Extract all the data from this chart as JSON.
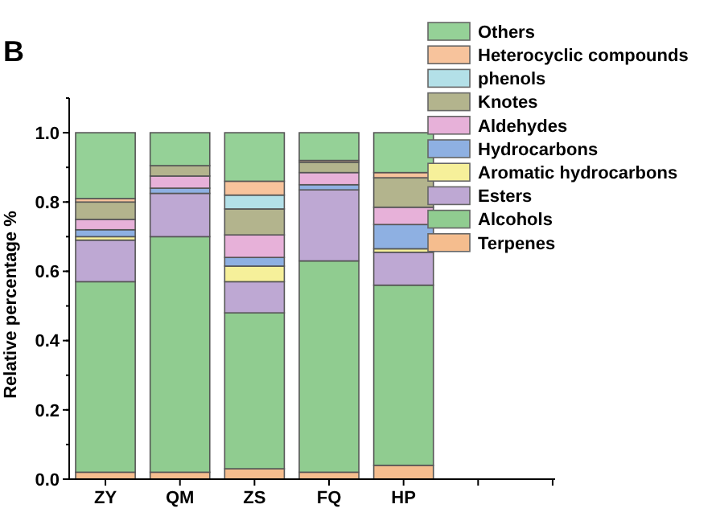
{
  "chart_data": {
    "type": "bar",
    "stacked": true,
    "ylabel": "Relative percentage %",
    "annotations": [
      "B"
    ],
    "categories": [
      "ZY",
      "QM",
      "ZS",
      "FQ",
      "HP",
      null,
      null
    ],
    "series": [
      {
        "name": "Terpenes",
        "color": "#f5bd8e",
        "values": [
          0.02,
          0.02,
          0.03,
          0.02,
          0.04,
          null,
          null
        ]
      },
      {
        "name": "Alcohols",
        "color": "#90cc90",
        "values": [
          0.55,
          0.68,
          0.45,
          0.61,
          0.52,
          null,
          null
        ]
      },
      {
        "name": "Esters",
        "color": "#bea8d3",
        "values": [
          0.12,
          0.125,
          0.09,
          0.205,
          0.095,
          null,
          null
        ]
      },
      {
        "name": "Aromatic hydrocarbons",
        "color": "#f6f09a",
        "values": [
          0.01,
          0,
          0.045,
          0,
          0.01,
          null,
          null
        ]
      },
      {
        "name": "Hydrocarbons",
        "color": "#8eb0e2",
        "values": [
          0.02,
          0.015,
          0.025,
          0.015,
          0.07,
          null,
          null
        ]
      },
      {
        "name": "Aldehydes",
        "color": "#e7b1d9",
        "values": [
          0.03,
          0.035,
          0.065,
          0.035,
          0.05,
          null,
          null
        ]
      },
      {
        "name": "Knotes",
        "color": "#b3b48d",
        "values": [
          0.05,
          0.03,
          0.075,
          0.03,
          0.085,
          null,
          null
        ]
      },
      {
        "name": "phenols",
        "color": "#b3e0e8",
        "values": [
          0,
          0,
          0.04,
          0,
          null,
          null,
          null
        ]
      },
      {
        "name": "Heterocyclic compounds",
        "color": "#f7c39c",
        "values": [
          0.01,
          null,
          0.04,
          0.005,
          0.015,
          null,
          null
        ]
      },
      {
        "name": "Others",
        "color": "#95d197",
        "values": [
          0.19,
          0.095,
          0.14,
          0.08,
          0.115,
          null,
          null
        ]
      }
    ],
    "ylim": [
      0,
      1.1
    ],
    "yticks": [
      {
        "value": 0,
        "label": "0.0"
      },
      0.2,
      0.4,
      0.6,
      0.8,
      {
        "value": 1,
        "label": "1.0"
      }
    ],
    "legend": "top right"
  }
}
